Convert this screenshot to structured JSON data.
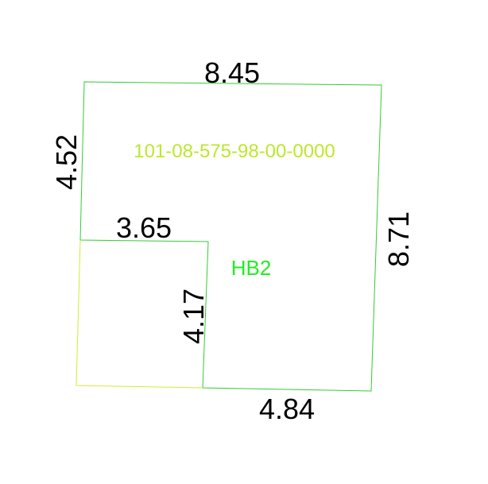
{
  "diagram": {
    "parcel_id": "101-08-575-98-00-0000",
    "zone_code": "HB2",
    "dimensions": {
      "top": "8.45",
      "left_upper": "4.52",
      "inner_horizontal": "3.65",
      "inner_vertical": "4.17",
      "right": "8.71",
      "bottom": "4.84"
    },
    "colors": {
      "outline": "#33cc33",
      "outline_yellow": "#ccee33",
      "parcel_id": "#bbe82a",
      "zone_code": "#22ee22",
      "dimension_text": "#000000"
    }
  }
}
